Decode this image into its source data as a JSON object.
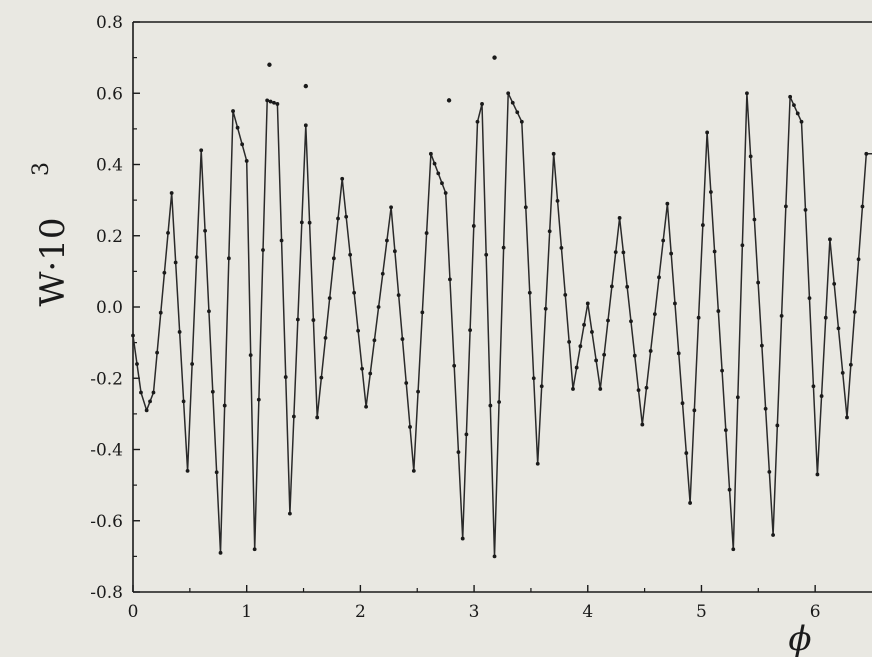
{
  "chart_data": {
    "type": "line",
    "title": "",
    "xlabel": "ϕ",
    "ylabel": {
      "base": "W·10",
      "superscript": "3"
    },
    "xlim": [
      0,
      6.5
    ],
    "ylim": [
      -0.8,
      0.8
    ],
    "xticks": [
      0,
      1,
      2,
      3,
      4,
      5,
      6
    ],
    "yticks": [
      0.8,
      0.6,
      0.4,
      0.2,
      0.0,
      -0.2,
      -0.4,
      -0.6,
      -0.8
    ],
    "ytick_labels": [
      "0.8",
      "0.6",
      "0.4",
      "0.2",
      "0.0",
      "-0.2",
      "-0.4",
      "-0.6",
      "-0.8"
    ],
    "grid": false,
    "colors": {
      "line": "#2a2a2a",
      "marker": "#1a1a1a",
      "axes": "#1a1a1a",
      "background": "#e9e8e2"
    },
    "series": [
      {
        "values": [
          [
            0.0,
            -0.08
          ],
          [
            0.07,
            -0.24
          ],
          [
            0.12,
            -0.29
          ],
          [
            0.18,
            -0.24
          ],
          [
            0.34,
            0.32
          ],
          [
            0.48,
            -0.46
          ],
          [
            0.6,
            0.44
          ],
          [
            0.77,
            -0.69
          ],
          [
            0.88,
            0.55
          ],
          [
            1.0,
            0.41
          ],
          [
            1.07,
            -0.68
          ],
          [
            1.18,
            0.58
          ],
          [
            1.27,
            0.57
          ],
          [
            1.38,
            -0.58
          ],
          [
            1.52,
            0.51
          ],
          [
            1.62,
            -0.31
          ],
          [
            1.84,
            0.36
          ],
          [
            2.05,
            -0.28
          ],
          [
            2.27,
            0.28
          ],
          [
            2.47,
            -0.46
          ],
          [
            2.62,
            0.43
          ],
          [
            2.75,
            0.32
          ],
          [
            2.9,
            -0.65
          ],
          [
            3.03,
            0.52
          ],
          [
            3.07,
            0.57
          ],
          [
            3.18,
            -0.7
          ],
          [
            3.3,
            0.6
          ],
          [
            3.42,
            0.52
          ],
          [
            3.56,
            -0.44
          ],
          [
            3.7,
            0.43
          ],
          [
            3.87,
            -0.23
          ],
          [
            4.0,
            0.01
          ],
          [
            4.11,
            -0.23
          ],
          [
            4.28,
            0.25
          ],
          [
            4.48,
            -0.33
          ],
          [
            4.7,
            0.29
          ],
          [
            4.9,
            -0.55
          ],
          [
            5.05,
            0.49
          ],
          [
            5.28,
            -0.68
          ],
          [
            5.4,
            0.6
          ],
          [
            5.63,
            -0.64
          ],
          [
            5.78,
            0.59
          ],
          [
            5.88,
            0.52
          ],
          [
            6.02,
            -0.47
          ],
          [
            6.13,
            0.19
          ],
          [
            6.28,
            -0.31
          ],
          [
            6.45,
            0.43
          ],
          [
            6.5,
            0.43
          ]
        ]
      }
    ],
    "scatter_outliers": [
      [
        1.2,
        0.68
      ],
      [
        1.52,
        0.62
      ],
      [
        2.78,
        0.58
      ],
      [
        3.18,
        0.7
      ]
    ]
  }
}
